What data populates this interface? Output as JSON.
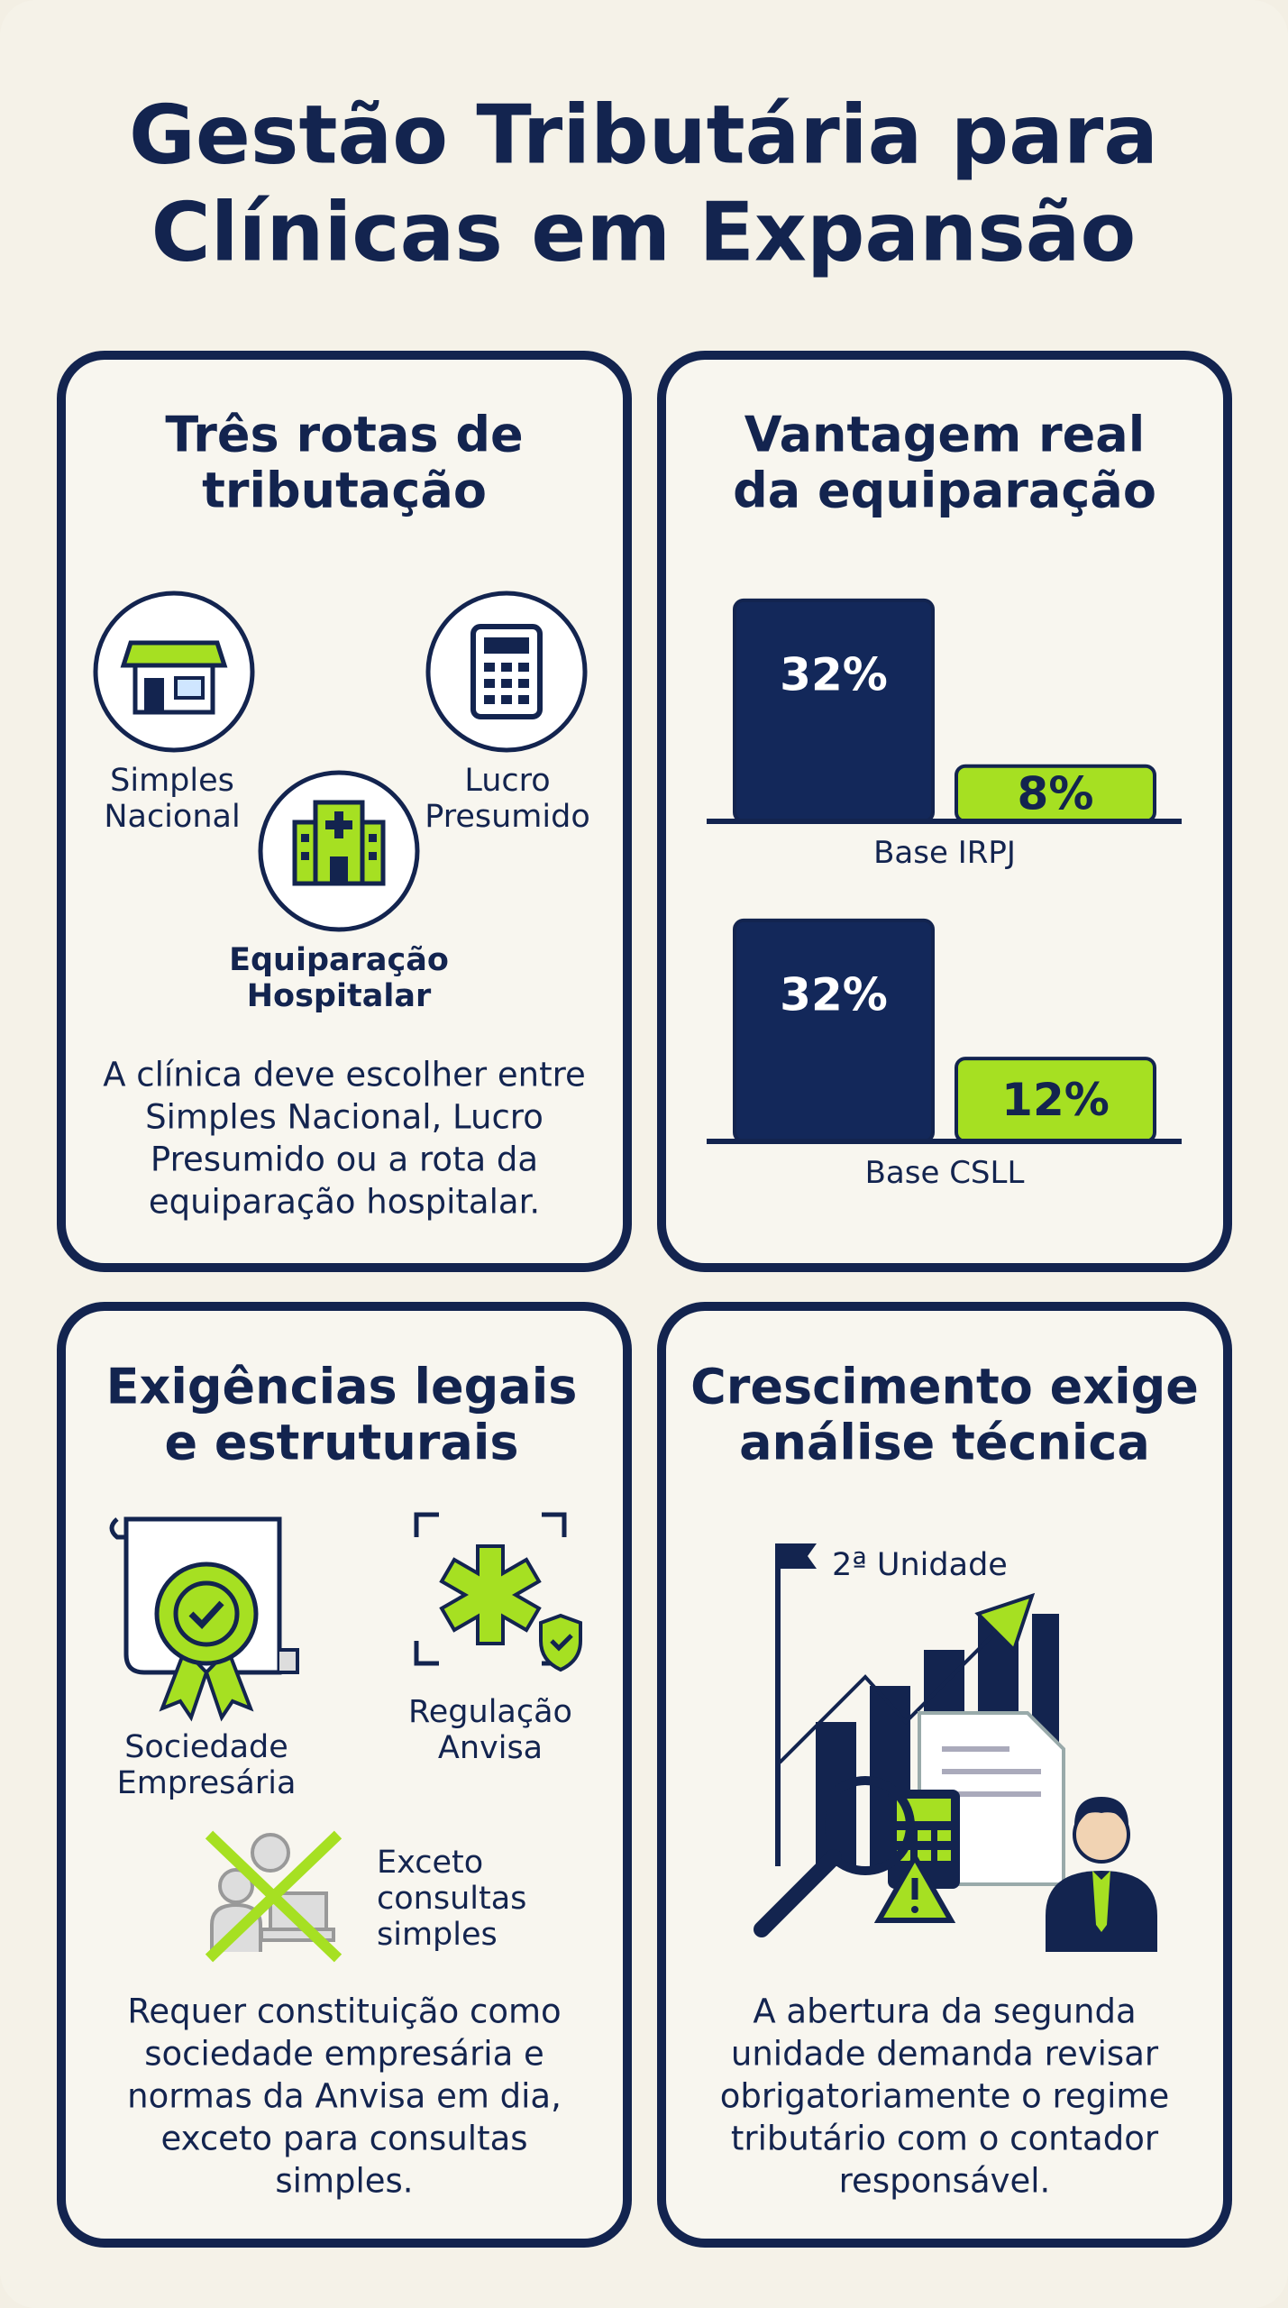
{
  "title": {
    "lines": [
      "Gestão Tributária para",
      "Clínicas em Expansão"
    ]
  },
  "panels": [
    {
      "heading": [
        "Três rotas de",
        "tributação"
      ],
      "items": [
        {
          "label": [
            "Simples",
            "Nacional"
          ]
        },
        {
          "label": [
            "Lucro",
            "Presumido"
          ]
        },
        {
          "label": [
            "Equiparação",
            "Hospitalar"
          ]
        }
      ],
      "text": [
        "A clínica deve escolher entre",
        "Simples Nacional, Lucro",
        "Presumido ou a rota da",
        "equiparação hospitalar."
      ]
    },
    {
      "heading": [
        "Vantagem real",
        "da equiparação"
      ],
      "colors": [
        "#13285a",
        "#a6e022"
      ],
      "groups": [
        {
          "label": "Base IRPJ",
          "values": [
            32,
            8
          ],
          "value_labels": [
            "32%",
            "8%"
          ]
        },
        {
          "label": "Base CSLL",
          "values": [
            32,
            12
          ],
          "value_labels": [
            "32%",
            "12%"
          ]
        }
      ]
    },
    {
      "heading": [
        "Exigências legais",
        "e estruturais"
      ],
      "items": [
        {
          "label": [
            "Sociedade",
            "Empresária"
          ]
        },
        {
          "label": [
            "Regulação",
            "Anvisa"
          ]
        },
        {
          "label": [
            "Exceto",
            "consultas",
            "simples"
          ]
        }
      ],
      "text": [
        "Requer constituição como",
        "sociedade empresária e",
        "normas da Anvisa em dia,",
        "exceto para consultas",
        "simples."
      ]
    },
    {
      "heading": [
        "Crescimento exige",
        "análise técnica"
      ],
      "items": [
        {
          "label": [
            "2ª Unidade"
          ]
        }
      ],
      "text": [
        "A abertura da segunda",
        "unidade demanda revisar",
        "obrigatoriamente o regime",
        "tributário com o contador",
        "responsável."
      ]
    }
  ]
}
